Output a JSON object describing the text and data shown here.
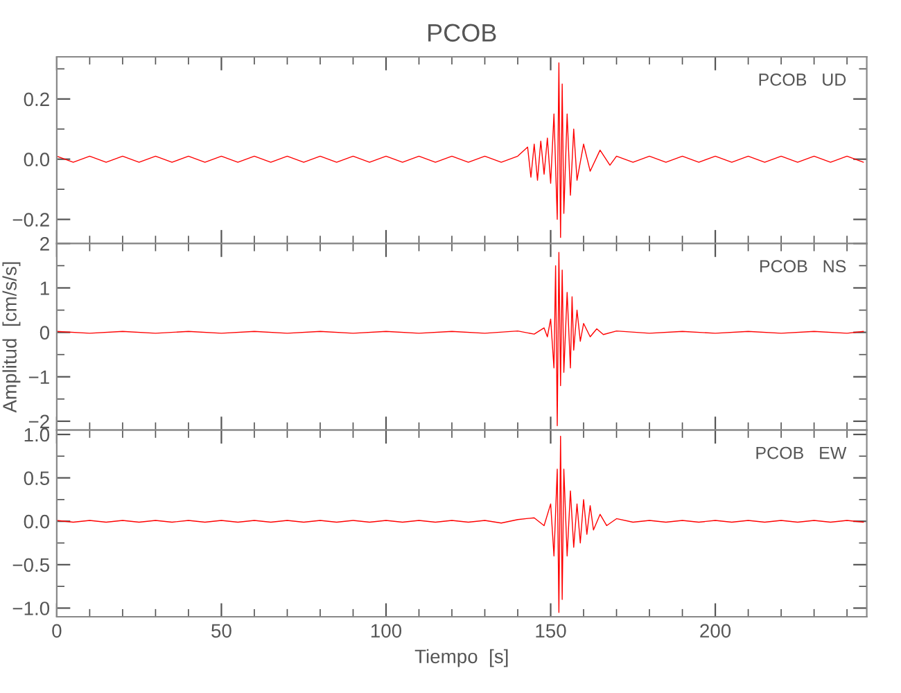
{
  "chart_data": [
    {
      "type": "line",
      "title": "PCOB",
      "annotations": [
        "PCOB   UD"
      ],
      "xlim": [
        0,
        246
      ],
      "xticks": [
        0,
        50,
        100,
        150,
        200
      ],
      "ylim": [
        -0.28,
        0.34
      ],
      "yticks": [
        {
          "value": -0.2,
          "label": "−0.2"
        },
        {
          "value": 0,
          "label": "0.0"
        },
        0.2
      ],
      "tick_labels": "y",
      "grid": false,
      "series": [
        {
          "color": "#ff0000",
          "x": [
            0,
            5,
            10,
            15,
            20,
            25,
            30,
            35,
            40,
            45,
            50,
            55,
            60,
            65,
            70,
            75,
            80,
            85,
            90,
            95,
            100,
            105,
            110,
            115,
            120,
            125,
            130,
            135,
            140,
            143,
            144,
            145,
            146,
            147,
            148,
            149,
            150,
            151,
            152,
            152.5,
            153,
            153.5,
            154,
            155,
            156,
            157,
            158,
            160,
            162,
            165,
            168,
            170,
            175,
            180,
            185,
            190,
            195,
            200,
            205,
            210,
            215,
            220,
            225,
            230,
            235,
            240,
            245
          ],
          "values": [
            0.01,
            -0.01,
            0.01,
            -0.01,
            0.01,
            -0.01,
            0.01,
            -0.01,
            0.01,
            -0.01,
            0.01,
            -0.01,
            0.01,
            -0.01,
            0.01,
            -0.01,
            0.01,
            -0.01,
            0.01,
            -0.01,
            0.01,
            -0.01,
            0.01,
            -0.01,
            0.01,
            -0.01,
            0.01,
            -0.01,
            0.01,
            0.04,
            -0.06,
            0.05,
            -0.07,
            0.06,
            -0.05,
            0.07,
            -0.08,
            0.15,
            -0.2,
            0.32,
            -0.26,
            0.25,
            -0.18,
            0.15,
            -0.12,
            0.1,
            -0.07,
            0.05,
            -0.04,
            0.03,
            -0.02,
            0.01,
            -0.01,
            0.01,
            -0.01,
            0.01,
            -0.01,
            0.01,
            -0.01,
            0.01,
            -0.01,
            0.01,
            -0.01,
            0.01,
            -0.01,
            0.01,
            -0.01
          ]
        }
      ]
    },
    {
      "type": "line",
      "ylabel": "Amplitud  [cm/s/s]",
      "annotations": [
        "PCOB   NS"
      ],
      "xlim": [
        0,
        246
      ],
      "xticks": [
        0,
        50,
        100,
        150,
        200
      ],
      "ylim": [
        -2.2,
        2.0
      ],
      "yticks": [
        {
          "value": -2,
          "label": "−2"
        },
        {
          "value": -1,
          "label": "−1"
        },
        0,
        1,
        2
      ],
      "tick_labels": "y",
      "grid": false,
      "series": [
        {
          "color": "#ff0000",
          "x": [
            0,
            10,
            20,
            30,
            40,
            50,
            60,
            70,
            80,
            90,
            100,
            110,
            120,
            130,
            140,
            145,
            148,
            149,
            150,
            151,
            151.5,
            152,
            152.5,
            153,
            153.5,
            154,
            155,
            156,
            156.5,
            157,
            158,
            159,
            160,
            162,
            164,
            166,
            170,
            180,
            190,
            200,
            210,
            220,
            230,
            240,
            245
          ],
          "values": [
            0.02,
            -0.02,
            0.02,
            -0.02,
            0.02,
            -0.02,
            0.02,
            -0.02,
            0.02,
            -0.02,
            0.02,
            -0.02,
            0.02,
            -0.02,
            0.03,
            -0.04,
            0.1,
            -0.1,
            0.3,
            -0.8,
            1.5,
            -2.1,
            1.8,
            -1.2,
            1.4,
            -0.9,
            0.9,
            -0.8,
            0.8,
            -0.4,
            0.5,
            -0.2,
            0.2,
            -0.1,
            0.08,
            -0.05,
            0.03,
            -0.02,
            0.02,
            -0.02,
            0.02,
            -0.02,
            0.02,
            -0.02,
            0.02
          ]
        }
      ]
    },
    {
      "type": "line",
      "xlabel": "Tiempo  [s]",
      "annotations": [
        "PCOB   EW"
      ],
      "xlim": [
        0,
        246
      ],
      "xticks": [
        0,
        50,
        100,
        150,
        200
      ],
      "ylim": [
        -1.1,
        1.05
      ],
      "yticks": [
        {
          "value": -1.0,
          "label": "−1.0"
        },
        {
          "value": -0.5,
          "label": "−0.5"
        },
        {
          "value": 0,
          "label": "0.0"
        },
        0.5,
        {
          "value": 1,
          "label": "1.0"
        }
      ],
      "grid": false,
      "series": [
        {
          "color": "#ff0000",
          "x": [
            0,
            5,
            10,
            15,
            20,
            25,
            30,
            35,
            40,
            45,
            50,
            55,
            60,
            65,
            70,
            75,
            80,
            85,
            90,
            95,
            100,
            105,
            110,
            115,
            120,
            125,
            130,
            135,
            140,
            145,
            148,
            150,
            151,
            152,
            152.5,
            153,
            153.5,
            154,
            155,
            156,
            157,
            158,
            159,
            160,
            161,
            162,
            163,
            165,
            167,
            170,
            175,
            180,
            185,
            190,
            195,
            200,
            205,
            210,
            215,
            220,
            225,
            230,
            235,
            240,
            245
          ],
          "values": [
            0.01,
            -0.01,
            0.01,
            -0.01,
            0.01,
            -0.01,
            0.01,
            -0.01,
            0.01,
            -0.01,
            0.01,
            -0.01,
            0.01,
            -0.01,
            0.01,
            -0.01,
            0.01,
            -0.01,
            0.01,
            -0.01,
            0.01,
            -0.01,
            0.01,
            -0.01,
            0.01,
            -0.01,
            0.01,
            -0.02,
            0.02,
            0.04,
            -0.05,
            0.2,
            -0.4,
            0.6,
            -1.05,
            0.98,
            -0.9,
            0.6,
            -0.4,
            0.35,
            -0.3,
            0.2,
            -0.25,
            0.25,
            -0.15,
            0.18,
            -0.1,
            0.08,
            -0.05,
            0.03,
            -0.01,
            0.01,
            -0.01,
            0.01,
            -0.01,
            0.01,
            -0.01,
            0.01,
            -0.01,
            0.01,
            -0.01,
            0.01,
            -0.01,
            0.01,
            -0.01
          ]
        }
      ]
    }
  ]
}
